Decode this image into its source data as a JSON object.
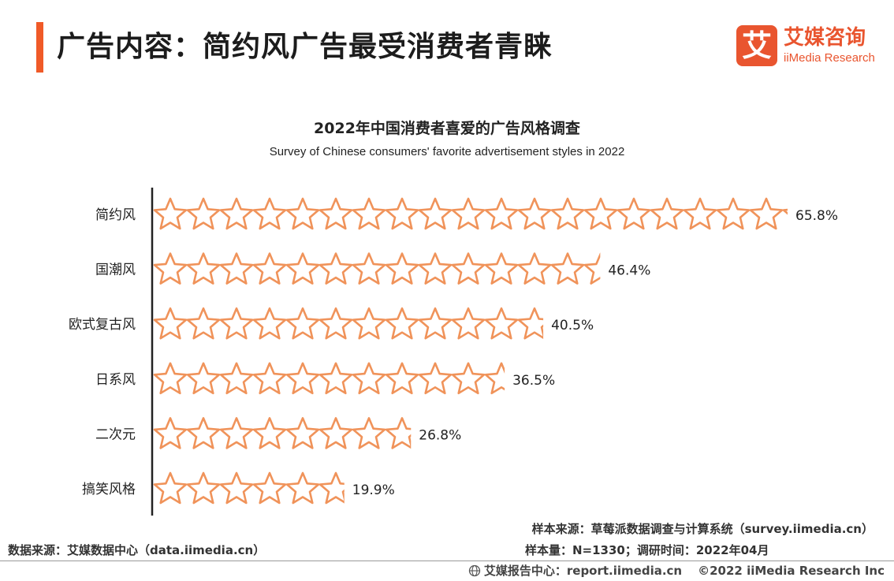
{
  "header": {
    "title": "广告内容：简约风广告最受消费者青睐",
    "accent_color": "#f05a28"
  },
  "logo": {
    "mark": "艾",
    "name_cn": "艾媒咨询",
    "name_en": "iiMedia Research",
    "brand_color": "#e9552f"
  },
  "chart_data": {
    "type": "bar",
    "orientation": "horizontal",
    "title": "2022年中国消费者喜爱的广告风格调查",
    "subtitle": "Survey of Chinese consumers' favorite advertisement styles in 2022",
    "categories": [
      "简约风",
      "国潮风",
      "欧式复古风",
      "日系风",
      "二次元",
      "搞笑风格"
    ],
    "values": [
      65.8,
      46.4,
      40.5,
      36.5,
      26.8,
      19.9
    ],
    "data_labels": [
      "65.8%",
      "46.4%",
      "40.5%",
      "36.5%",
      "26.8%",
      "19.9%"
    ],
    "unit": "%",
    "mark": "star-icon",
    "mark_color": "#f0935a",
    "xlim": [
      0,
      65.8
    ],
    "grid": false,
    "legend": "none"
  },
  "notes": {
    "sample_source": "样本来源：草莓派数据调查与计算系统（survey.iimedia.cn）",
    "sample_size": "样本量：N=1330；调研时间：2022年04月",
    "data_source": "数据来源：艾媒数据中心（data.iimedia.cn）"
  },
  "footer": {
    "icon": "globe-icon",
    "report_center": "艾媒报告中心：report.iimedia.cn",
    "copyright": "©2022  iiMedia Research  Inc"
  }
}
